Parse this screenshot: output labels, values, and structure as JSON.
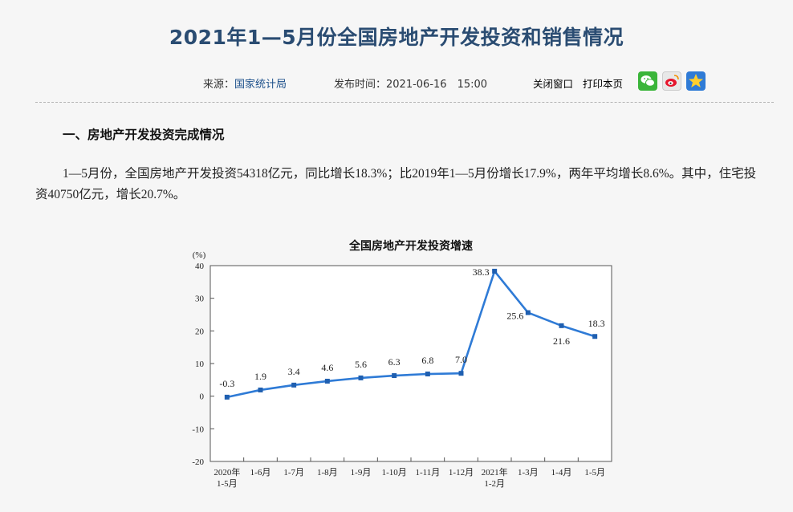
{
  "page": {
    "title": "2021年1—5月份全国房地产开发投资和销售情况",
    "source_label": "来源：",
    "source_value": "国家统计局",
    "date_label": "发布时间：",
    "date_value": "2021-06-16　15:00",
    "close_label": "关闭窗口",
    "print_label": "打印本页",
    "share_icons": [
      "wechat-icon",
      "weibo-icon",
      "qzone-icon"
    ],
    "section_heading": "一、房地产开发投资完成情况",
    "paragraph": "1—5月份，全国房地产开发投资54318亿元，同比增长18.3%；比2019年1—5月份增长17.9%，两年平均增长8.6%。其中，住宅投资40750亿元，增长20.7%。",
    "accent_color": "#2a4c72",
    "link_color": "#1b4f8a"
  },
  "chart_data": {
    "type": "line",
    "title": "全国房地产开发投资增速",
    "ylabel": "(%)",
    "ylim": [
      -20,
      40
    ],
    "yticks": [
      "40",
      "30",
      "20",
      "10",
      "0",
      "-10",
      "-20"
    ],
    "grid": false,
    "line_color": "#2f7bd6",
    "categories": [
      [
        "2020年",
        "1-5月"
      ],
      [
        "1-6月"
      ],
      [
        "1-7月"
      ],
      [
        "1-8月"
      ],
      [
        "1-9月"
      ],
      [
        "1-10月"
      ],
      [
        "1-11月"
      ],
      [
        "1-12月"
      ],
      [
        "2021年",
        "1-2月"
      ],
      [
        "1-3月"
      ],
      [
        "1-4月"
      ],
      [
        "1-5月"
      ]
    ],
    "values": [
      -0.3,
      1.9,
      3.4,
      4.6,
      5.6,
      6.3,
      6.8,
      7.0,
      38.3,
      25.6,
      21.6,
      18.3
    ],
    "labels": [
      "-0.3",
      "1.9",
      "3.4",
      "4.6",
      "5.6",
      "6.3",
      "6.8",
      "7.0",
      "38.3",
      "25.6",
      "21.6",
      "18.3"
    ]
  }
}
